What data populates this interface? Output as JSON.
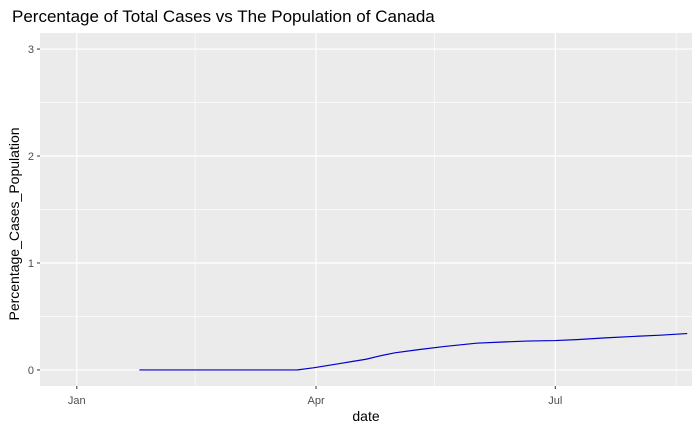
{
  "chart_data": {
    "type": "line",
    "title": "Percentage of Total Cases vs The Population of Canada",
    "xlabel": "date",
    "ylabel": "Percentage_Cases_Population",
    "x_axis_type": "date",
    "xlim": [
      "2019-12-18",
      "2020-08-22"
    ],
    "ylim": [
      -0.15,
      3.15
    ],
    "y_ticks": [
      0,
      1,
      2,
      3
    ],
    "y_tick_labels": [
      "0",
      "1",
      "2",
      "3"
    ],
    "x_ticks": [
      "2020-01-01",
      "2020-04-01",
      "2020-07-01"
    ],
    "x_tick_labels": [
      "Jan",
      "Apr",
      "Jul"
    ],
    "x_minor_ticks": [
      "2020-02-15",
      "2020-05-16",
      "2020-08-16"
    ],
    "y_minor_ticks": [
      0.5,
      1.5,
      2.5
    ],
    "grid": true,
    "panel_background": "#EBEBEB",
    "grid_color": "#FFFFFF",
    "line_color": "#0000CC",
    "series": [
      {
        "x": [
          "2020-01-25",
          "2020-02-10",
          "2020-02-25",
          "2020-03-10",
          "2020-03-25",
          "2020-03-31",
          "2020-04-05",
          "2020-04-10",
          "2020-04-15",
          "2020-04-20",
          "2020-04-25",
          "2020-05-01",
          "2020-05-10",
          "2020-05-20",
          "2020-06-01",
          "2020-06-10",
          "2020-06-20",
          "2020-07-01",
          "2020-07-10",
          "2020-07-20",
          "2020-08-01",
          "2020-08-10",
          "2020-08-20"
        ],
        "values": [
          0.0,
          0.0,
          0.0,
          0.0,
          0.001,
          0.02,
          0.04,
          0.06,
          0.08,
          0.1,
          0.13,
          0.16,
          0.19,
          0.22,
          0.25,
          0.26,
          0.27,
          0.275,
          0.285,
          0.3,
          0.315,
          0.325,
          0.34
        ]
      }
    ]
  }
}
